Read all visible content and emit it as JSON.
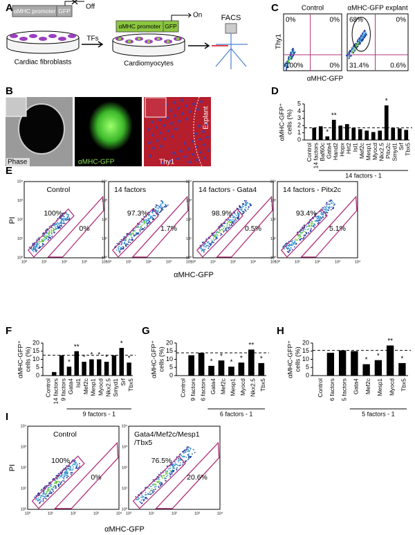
{
  "panel_labels": [
    "A",
    "B",
    "C",
    "D",
    "E",
    "F",
    "G",
    "H",
    "I"
  ],
  "panel_a": {
    "off_promoter": "αMHC promoter",
    "off_reporter": "GFP",
    "off": "Off",
    "start_cells": "Cardiac fibroblasts",
    "tfs": "TFs",
    "on_promoter": "αMHC promoter",
    "on_reporter": "GFP",
    "on": "On",
    "end_cells": "Cardiomyocytes",
    "facs": "FACS"
  },
  "panel_b": {
    "phase": "Phase",
    "gfp": "αMHC-GFP",
    "thy1": "Thy1",
    "explant": "Explant"
  },
  "panel_c": {
    "y_label": "Thy1",
    "x_label": "αMHC-GFP",
    "plots": [
      {
        "title": "Control",
        "quadrants": [
          "0%",
          "0%",
          "100%",
          "0%"
        ]
      },
      {
        "title": "αMHC-GFP explant",
        "quadrants": [
          "68%",
          "0%",
          "31.4%",
          "0.6%"
        ]
      }
    ]
  },
  "log_ticks": [
    "10⁰",
    "10¹",
    "10²",
    "10³",
    "10⁴"
  ],
  "panel_e": {
    "y_label": "PI",
    "x_label": "αMHC-GFP",
    "plots": [
      {
        "title": [
          "Control"
        ],
        "gates": [
          "100%",
          "0%"
        ]
      },
      {
        "title": [
          "14 factors"
        ],
        "gates": [
          "97.3%",
          "1.7%"
        ]
      },
      {
        "title": [
          "14 factors - Gata4"
        ],
        "gates": [
          "98.9%",
          "0.5%"
        ]
      },
      {
        "title": [
          "14 factors - Pitx2c"
        ],
        "gates": [
          "93.4%",
          "5.1%"
        ]
      }
    ]
  },
  "panel_i": {
    "y_label": "PI",
    "x_label": "αMHC-GFP",
    "plots": [
      {
        "title": [
          "Control"
        ],
        "gates": [
          "100%",
          "0%"
        ]
      },
      {
        "title": [
          "Gata4/Mef2c/Mesp1",
          "/Tbx5"
        ],
        "gates": [
          "76.5%",
          "20.6%"
        ]
      }
    ]
  },
  "chart_data": [
    {
      "type": "bar",
      "y_label": [
        "αMHC-GFP⁺",
        "cells (%)"
      ],
      "categories": [
        "Control",
        "14 factors",
        "Baf60c",
        "Gata4",
        "Hand2",
        "Hopx",
        "Hrt2",
        "Isl1",
        "Mef2c",
        "Mesp1",
        "Myocd",
        "Nkx2.5",
        "Pitx2c",
        "Smyd1",
        "Srf",
        "Tbx5"
      ],
      "values": [
        0,
        1.7,
        1.9,
        0.5,
        2.8,
        2.0,
        2.2,
        1.7,
        1.5,
        1.3,
        1.1,
        1.3,
        4.8,
        1.7,
        1.6,
        1.4
      ],
      "stars": [
        null,
        null,
        null,
        "*",
        "**",
        null,
        null,
        null,
        null,
        null,
        null,
        null,
        "*",
        null,
        null,
        null
      ],
      "reference": 1.7,
      "group_label": "14 factors - 1",
      "color": "#000000",
      "ylim": [
        0,
        5
      ],
      "yticks": [
        0,
        1,
        2,
        3,
        4,
        5
      ]
    },
    {
      "type": "bar",
      "y_label": [
        "αMHC-GFP⁺",
        "cells (%)"
      ],
      "categories": [
        "Control",
        "14 factors",
        "9 factors",
        "Gata4",
        "Isl1",
        "Mef2c",
        "Mesp1",
        "Myocd",
        "Nkx2.5",
        "Smyd1",
        "Srf",
        "Tbx5"
      ],
      "values": [
        0,
        2.2,
        12.5,
        5.5,
        15,
        8.5,
        10,
        10,
        8.5,
        12.5,
        17,
        8
      ],
      "stars": [
        null,
        null,
        null,
        "*",
        "**",
        "*",
        "*",
        "*",
        "*",
        null,
        "*",
        "*"
      ],
      "reference": 12.5,
      "group_label": "9 factors - 1",
      "color": "#000000",
      "ylim": [
        0,
        20
      ],
      "yticks": [
        0,
        5,
        10,
        15,
        20
      ]
    },
    {
      "type": "bar",
      "y_label": [
        "αMHC-GFP⁺",
        "cells (%)"
      ],
      "categories": [
        "Control",
        "9 factors",
        "6 factors",
        "Gata4",
        "Mef2c",
        "Mesp1",
        "Myocd",
        "Nkx2.5",
        "Tbx5"
      ],
      "values": [
        0,
        12.5,
        14,
        6,
        9.3,
        5.5,
        8,
        16,
        7.7
      ],
      "stars": [
        null,
        null,
        null,
        "*",
        "*",
        "*",
        "*",
        "**",
        "*"
      ],
      "reference": 14,
      "group_label": "6 factors - 1",
      "color": "#000000",
      "ylim": [
        0,
        20
      ],
      "yticks": [
        0,
        5,
        10,
        15,
        20
      ]
    },
    {
      "type": "bar",
      "y_label": [
        "αMHC-GFP⁺",
        "cells (%)"
      ],
      "categories": [
        "Control",
        "6 factors",
        "5 factors",
        "Gata4",
        "Mef2c",
        "Mesp1",
        "Myocd",
        "Tbx5"
      ],
      "values": [
        0,
        14,
        15.5,
        15,
        7,
        9.5,
        18.5,
        7.7
      ],
      "stars": [
        null,
        null,
        null,
        null,
        "*",
        "*",
        "**",
        "*"
      ],
      "reference": 15.5,
      "group_label": "5 factors - 1",
      "color": "#000000",
      "ylim": [
        0,
        20
      ],
      "yticks": [
        0,
        5,
        10,
        15,
        20
      ]
    }
  ]
}
